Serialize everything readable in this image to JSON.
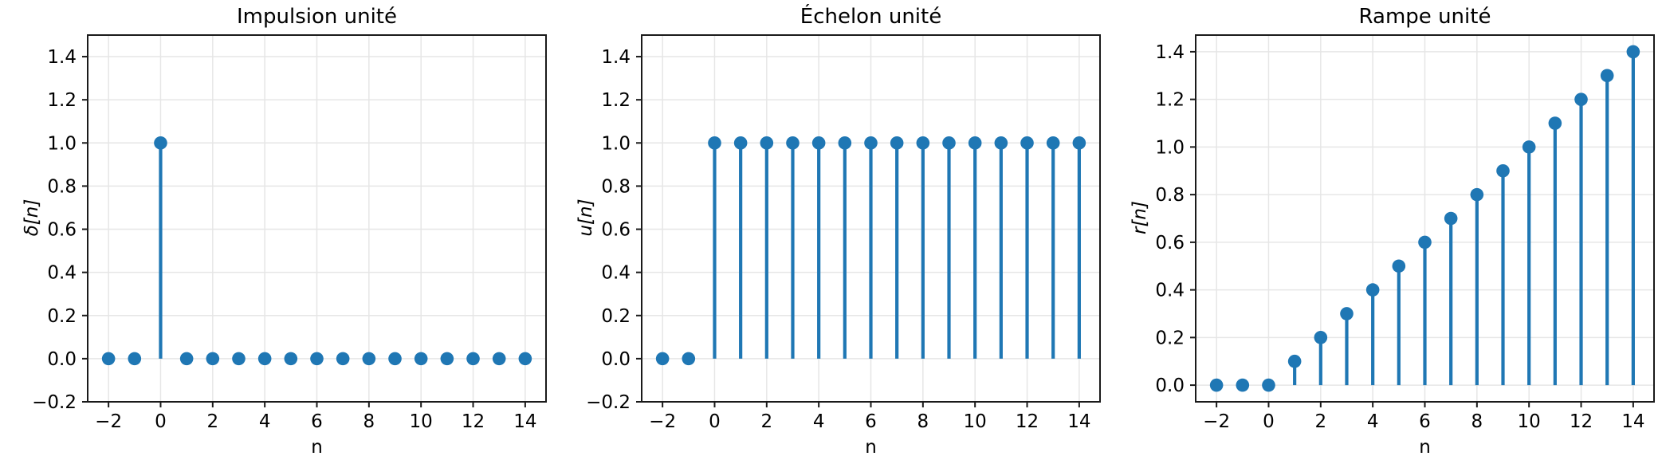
{
  "figure": {
    "background": "#ffffff"
  },
  "style": {
    "accent_color": "#1f77b4",
    "grid_color": "#e6e6e6",
    "spine_color": "#1a1a1a",
    "text_color": "#000000"
  },
  "chart_data": [
    {
      "type": "stem",
      "title": "Impulsion unité",
      "xlabel": "n",
      "ylabel": "δ[n]",
      "x": [
        -2,
        -1,
        0,
        1,
        2,
        3,
        4,
        5,
        6,
        7,
        8,
        9,
        10,
        11,
        12,
        13,
        14
      ],
      "values": [
        0,
        0,
        1,
        0,
        0,
        0,
        0,
        0,
        0,
        0,
        0,
        0,
        0,
        0,
        0,
        0,
        0
      ],
      "xlim": [
        -2.8,
        14.8
      ],
      "ylim": [
        -0.2,
        1.5
      ],
      "xticks": [
        -2,
        0,
        2,
        4,
        6,
        8,
        10,
        12,
        14
      ],
      "xtick_labels": [
        "−2",
        "0",
        "2",
        "4",
        "6",
        "8",
        "10",
        "12",
        "14"
      ],
      "yticks": [
        -0.2,
        0.0,
        0.2,
        0.4,
        0.6,
        0.8,
        1.0,
        1.2,
        1.4
      ],
      "ytick_labels": [
        "−0.2",
        "0.0",
        "0.2",
        "0.4",
        "0.6",
        "0.8",
        "1.0",
        "1.2",
        "1.4"
      ],
      "grid": true,
      "color": "#1f77b4"
    },
    {
      "type": "stem",
      "title": "Échelon unité",
      "xlabel": "n",
      "ylabel": "u[n]",
      "x": [
        -2,
        -1,
        0,
        1,
        2,
        3,
        4,
        5,
        6,
        7,
        8,
        9,
        10,
        11,
        12,
        13,
        14
      ],
      "values": [
        0,
        0,
        1,
        1,
        1,
        1,
        1,
        1,
        1,
        1,
        1,
        1,
        1,
        1,
        1,
        1,
        1
      ],
      "xlim": [
        -2.8,
        14.8
      ],
      "ylim": [
        -0.2,
        1.5
      ],
      "xticks": [
        -2,
        0,
        2,
        4,
        6,
        8,
        10,
        12,
        14
      ],
      "xtick_labels": [
        "−2",
        "0",
        "2",
        "4",
        "6",
        "8",
        "10",
        "12",
        "14"
      ],
      "yticks": [
        -0.2,
        0.0,
        0.2,
        0.4,
        0.6,
        0.8,
        1.0,
        1.2,
        1.4
      ],
      "ytick_labels": [
        "−0.2",
        "0.0",
        "0.2",
        "0.4",
        "0.6",
        "0.8",
        "1.0",
        "1.2",
        "1.4"
      ],
      "grid": true,
      "color": "#1f77b4"
    },
    {
      "type": "stem",
      "title": "Rampe unité",
      "xlabel": "n",
      "ylabel": "r[n]",
      "x": [
        -2,
        -1,
        0,
        1,
        2,
        3,
        4,
        5,
        6,
        7,
        8,
        9,
        10,
        11,
        12,
        13,
        14
      ],
      "values": [
        0,
        0,
        0,
        0.1,
        0.2,
        0.3,
        0.4,
        0.5,
        0.6,
        0.7,
        0.8,
        0.9,
        1.0,
        1.1,
        1.2,
        1.3,
        1.4
      ],
      "xlim": [
        -2.8,
        14.8
      ],
      "ylim": [
        -0.07,
        1.47
      ],
      "xticks": [
        -2,
        0,
        2,
        4,
        6,
        8,
        10,
        12,
        14
      ],
      "xtick_labels": [
        "−2",
        "0",
        "2",
        "4",
        "6",
        "8",
        "10",
        "12",
        "14"
      ],
      "yticks": [
        0.0,
        0.2,
        0.4,
        0.6,
        0.8,
        1.0,
        1.2,
        1.4
      ],
      "ytick_labels": [
        "0.0",
        "0.2",
        "0.4",
        "0.6",
        "0.8",
        "1.0",
        "1.2",
        "1.4"
      ],
      "grid": true,
      "color": "#1f77b4"
    }
  ]
}
